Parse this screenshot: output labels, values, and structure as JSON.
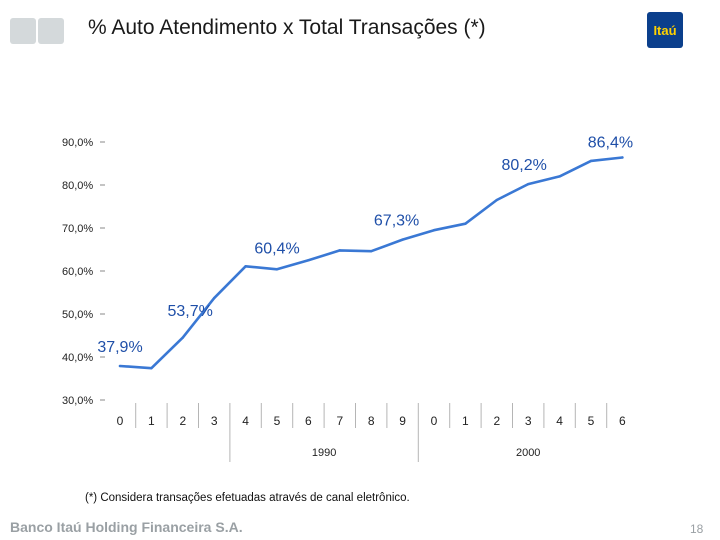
{
  "header": {
    "title": "% Auto Atendimento x Total Transações (*)",
    "logo_text": "Itaú"
  },
  "footer": {
    "footnote": "(*) Considera transações efetuadas através de canal eletrônico.",
    "company": "Banco Itaú Holding Financeira S.A.",
    "page_number": "18"
  },
  "colors": {
    "line": "#3a78d4",
    "label": "#1f4fa8",
    "logo_bg": "#0b3f8c",
    "logo_text": "#ffd200"
  },
  "chart_data": {
    "type": "line",
    "title": "% Auto Atendimento x Total Transações (*)",
    "ylim": [
      30,
      90
    ],
    "yticks": [
      "30,0%",
      "40,0%",
      "50,0%",
      "60,0%",
      "70,0%",
      "80,0%",
      "90,0%"
    ],
    "categories": [
      "0",
      "1",
      "2",
      "3",
      "4",
      "5",
      "6",
      "7",
      "8",
      "9",
      "0",
      "1",
      "2",
      "3",
      "4",
      "5",
      "6"
    ],
    "category_groups": [
      {
        "label": "1990",
        "start": 4,
        "end": 9
      },
      {
        "label": "2000",
        "start": 10,
        "end": 16
      }
    ],
    "series": [
      {
        "values": [
          37.9,
          37.4,
          44.5,
          53.7,
          61.1,
          60.4,
          62.5,
          64.8,
          64.6,
          67.3,
          69.5,
          71.0,
          76.5,
          80.2,
          82.0,
          85.6,
          86.4
        ]
      }
    ],
    "data_labels": [
      {
        "index": 0,
        "text": "37,9%"
      },
      {
        "index": 3,
        "text": "53,7%"
      },
      {
        "index": 5,
        "text": "60,4%"
      },
      {
        "index": 9,
        "text": "67,3%"
      },
      {
        "index": 13,
        "text": "80,2%"
      },
      {
        "index": 16,
        "text": "86,4%"
      }
    ],
    "grid": false,
    "legend": "none"
  }
}
